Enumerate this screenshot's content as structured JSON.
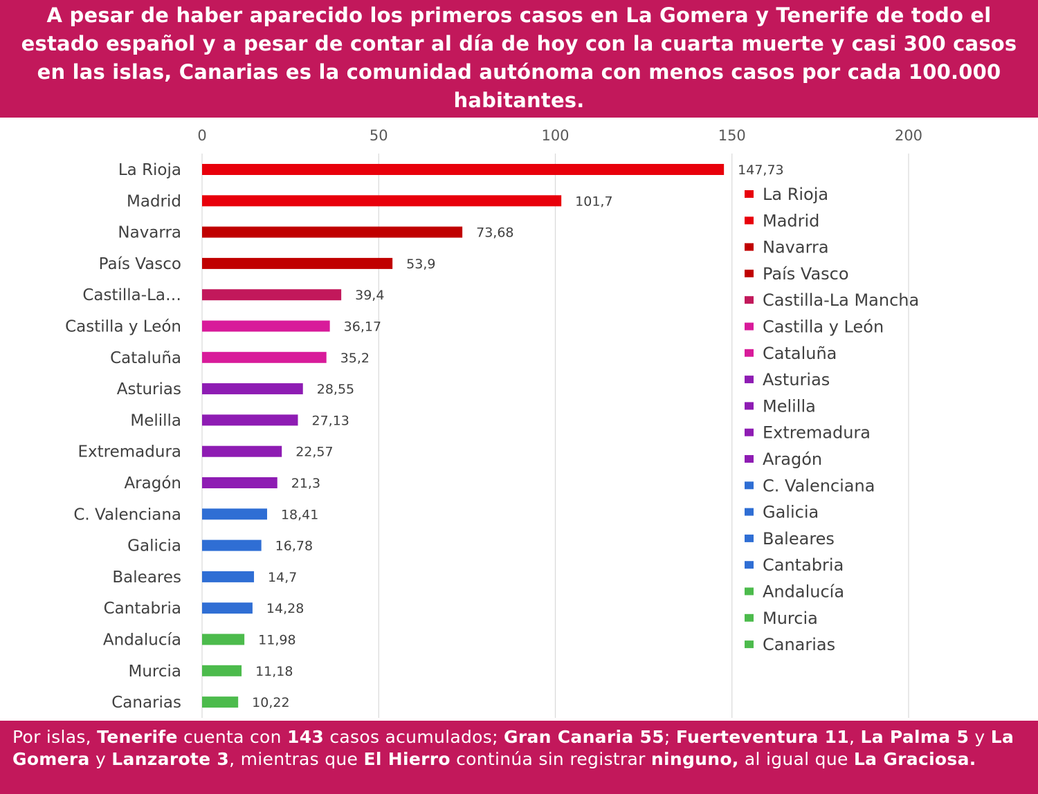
{
  "header": {
    "headline": "A pesar de haber aparecido los primeros casos en La Gomera y Tenerife de todo el estado español y a pesar de contar al día de hoy con  la cuarta muerte y casi 300 casos en las islas,  Canarias es la comunidad autónoma con menos casos por cada  100.000 habitantes."
  },
  "footer": {
    "parts": [
      {
        "text": "Por islas, ",
        "bold": false
      },
      {
        "text": "Tenerife",
        "bold": true
      },
      {
        "text": " cuenta con ",
        "bold": false
      },
      {
        "text": "143",
        "bold": true
      },
      {
        "text": " casos acumulados; ",
        "bold": false
      },
      {
        "text": "Gran Canaria 55",
        "bold": true
      },
      {
        "text": "; ",
        "bold": false
      },
      {
        "text": "Fuerteventura 11",
        "bold": true
      },
      {
        "text": ", ",
        "bold": false
      },
      {
        "text": "La Palma 5",
        "bold": true
      },
      {
        "text": " y ",
        "bold": false
      },
      {
        "text": "La Gomera",
        "bold": true
      },
      {
        "text": " y ",
        "bold": false
      },
      {
        "text": "Lanzarote 3",
        "bold": true
      },
      {
        "text": ", mientras que ",
        "bold": false
      },
      {
        "text": "El Hierro",
        "bold": true
      },
      {
        "text": " continúa sin registrar ",
        "bold": false
      },
      {
        "text": "ninguno,",
        "bold": true
      },
      {
        "text": " al igual que ",
        "bold": false
      },
      {
        "text": "La Graciosa.",
        "bold": true
      }
    ]
  },
  "chart_data": {
    "type": "bar",
    "orientation": "horizontal",
    "title": "",
    "xlabel": "",
    "ylabel": "",
    "xlim": [
      0,
      200
    ],
    "x_ticks": [
      0,
      50,
      100,
      150,
      200
    ],
    "x_axis_position": "top",
    "grid": true,
    "legend_position": "right",
    "categories": [
      "La Rioja",
      "Madrid",
      "Navarra",
      "País Vasco",
      "Castilla-La Mancha",
      "Castilla y León",
      "Cataluña",
      "Asturias",
      "Melilla",
      "Extremadura",
      "Aragón",
      "C. Valenciana",
      "Galicia",
      "Baleares",
      "Cantabria",
      "Andalucía",
      "Murcia",
      "Canarias"
    ],
    "category_labels": [
      "La Rioja",
      "Madrid",
      "Navarra",
      "País Vasco",
      "Castilla-La…",
      "Castilla y León",
      "Cataluña",
      "Asturias",
      "Melilla",
      "Extremadura",
      "Aragón",
      "C. Valenciana",
      "Galicia",
      "Baleares",
      "Cantabria",
      "Andalucía",
      "Murcia",
      "Canarias"
    ],
    "values": [
      147.73,
      101.7,
      73.68,
      53.9,
      39.4,
      36.17,
      35.2,
      28.55,
      27.13,
      22.57,
      21.3,
      18.41,
      16.78,
      14.7,
      14.28,
      11.98,
      11.18,
      10.22
    ],
    "value_labels": [
      "147,73",
      "101,7",
      "73,68",
      "53,9",
      "39,4",
      "36,17",
      "35,2",
      "28,55",
      "27,13",
      "22,57",
      "21,3",
      "18,41",
      "16,78",
      "14,7",
      "14,28",
      "11,98",
      "11,18",
      "10,22"
    ],
    "colors": [
      "#e8000b",
      "#e8000b",
      "#c00000",
      "#c00000",
      "#c2185b",
      "#d81b9a",
      "#d81b9a",
      "#8e1cb3",
      "#8e1cb3",
      "#8e1cb3",
      "#8e1cb3",
      "#2f6ed4",
      "#2f6ed4",
      "#2f6ed4",
      "#2f6ed4",
      "#4cbb4c",
      "#4cbb4c",
      "#4cbb4c"
    ],
    "legend": [
      "La Rioja",
      "Madrid",
      "Navarra",
      "País Vasco",
      "Castilla-La Mancha",
      "Castilla y León",
      "Cataluña",
      "Asturias",
      "Melilla",
      "Extremadura",
      "Aragón",
      "C. Valenciana",
      "Galicia",
      "Baleares",
      "Cantabria",
      "Andalucía",
      "Murcia",
      "Canarias"
    ]
  }
}
